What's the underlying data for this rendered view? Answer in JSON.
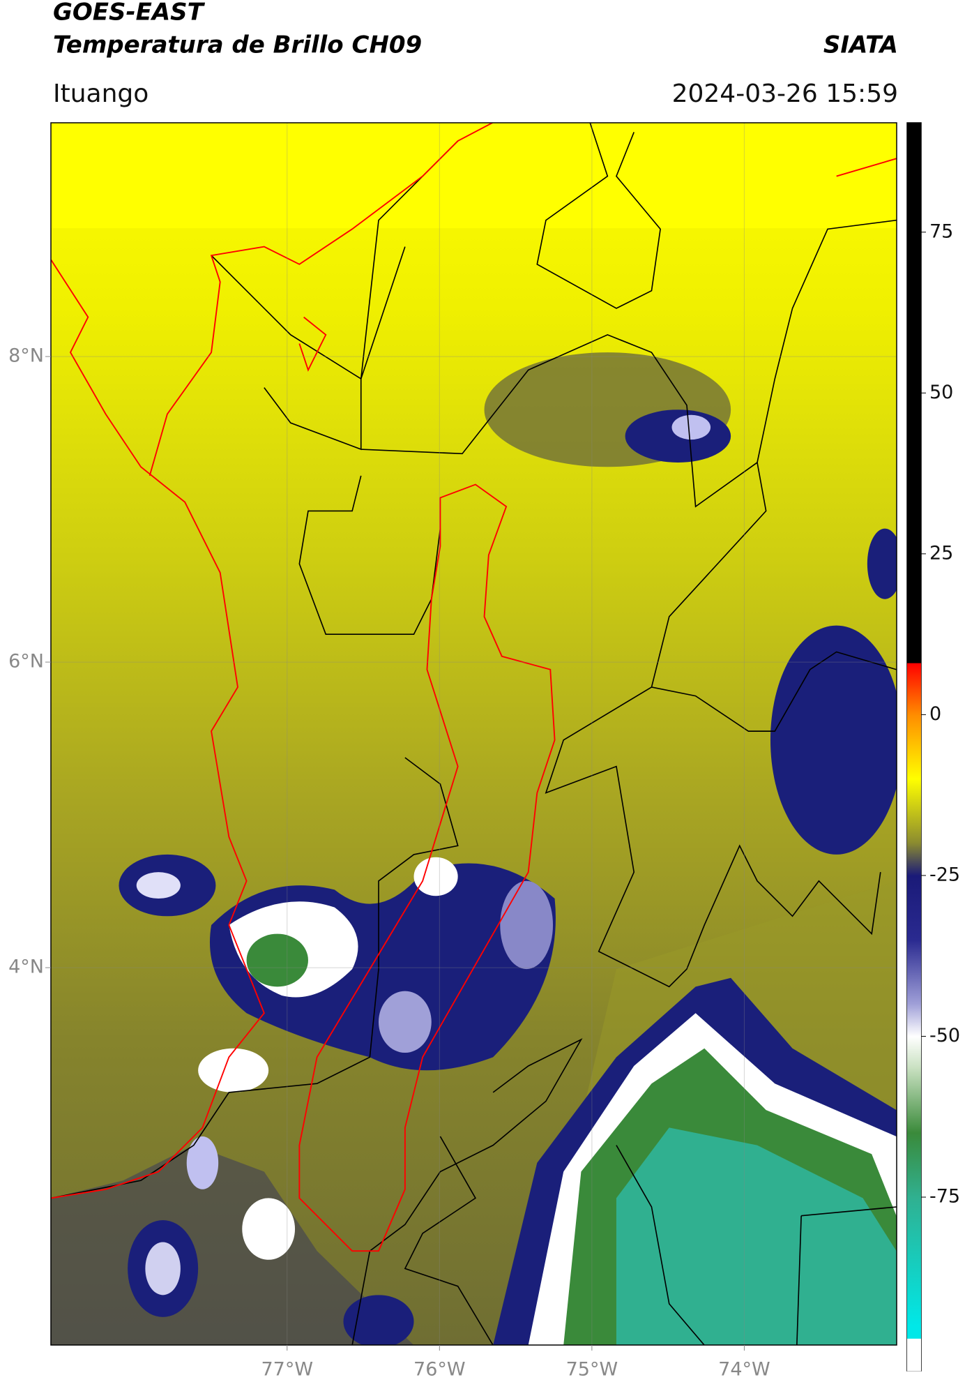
{
  "header": {
    "title": "GOES-EAST",
    "subtitle": "Temperatura de Brillo CH09",
    "source": "SIATA",
    "location": "Ituango",
    "timestamp": "2024-03-26 15:59"
  },
  "map": {
    "xlim": [
      -78.55,
      -73.0
    ],
    "ylim": [
      1.53,
      9.53
    ],
    "grid": true,
    "xticks": [
      {
        "value": -77,
        "label": "77°W"
      },
      {
        "value": -76,
        "label": "76°W"
      },
      {
        "value": -75,
        "label": "75°W"
      },
      {
        "value": -74,
        "label": "74°W"
      }
    ],
    "yticks": [
      {
        "value": 8,
        "label": "8°N"
      },
      {
        "value": 6,
        "label": "6°N"
      },
      {
        "value": 4,
        "label": "4°N"
      }
    ]
  },
  "colorbar": {
    "lim": [
      -102,
      92
    ],
    "ticks": [
      75,
      50,
      25,
      0,
      -25,
      -50,
      -75
    ],
    "stops": [
      {
        "value": 92,
        "color": "#000000"
      },
      {
        "value": 8,
        "color": "#000000"
      },
      {
        "value": 8,
        "color": "#ff0000"
      },
      {
        "value": 0,
        "color": "#ff8c00"
      },
      {
        "value": -10,
        "color": "#ffff00"
      },
      {
        "value": -20,
        "color": "#8a8a30"
      },
      {
        "value": -25,
        "color": "#1a1a78"
      },
      {
        "value": -35,
        "color": "#2a2a90"
      },
      {
        "value": -45,
        "color": "#a0a0d8"
      },
      {
        "value": -50,
        "color": "#ffffff"
      },
      {
        "value": -55,
        "color": "#c8e0c0"
      },
      {
        "value": -65,
        "color": "#3a8a3a"
      },
      {
        "value": -75,
        "color": "#30b090"
      },
      {
        "value": -95,
        "color": "#00e8e8"
      },
      {
        "value": -97,
        "color": "#00e8e8"
      },
      {
        "value": -97,
        "color": "#ffffff"
      },
      {
        "value": -102,
        "color": "#ffffff"
      }
    ]
  }
}
